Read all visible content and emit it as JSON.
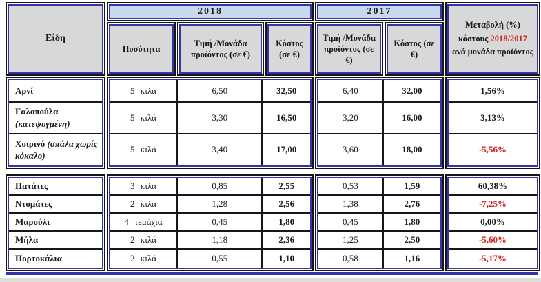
{
  "table": {
    "header": {
      "items_label": "Είδη",
      "year_2018": "2018",
      "year_2017": "2017",
      "quantity": "Ποσότητα",
      "unit_price_2018": "Τιμή /Μονάδα προϊόντος (σε €)",
      "cost_2018": "Κόστος (σε €)",
      "unit_price_2017": "Τιμή /Μονάδα προϊόντος (σε €)",
      "cost_2017": "Κόστος (σε €)",
      "change_line1": "Μεταβολή (%)",
      "change_prefix": "κόστους ",
      "change_years": "2018/2017",
      "change_suffix": "ανά μονάδα προϊόντος"
    },
    "groups": [
      {
        "rows": [
          {
            "name": "Αρνί",
            "note": "",
            "qty": "5 κιλά",
            "unit_price_2018": "6,50",
            "cost_2018": "32,50",
            "unit_price_2017": "6,40",
            "cost_2017": "32,00",
            "change": "1,56%",
            "negative": false
          },
          {
            "name": "Γαλοπούλα",
            "note": "(κατεψυγμένη)",
            "qty": "5 κιλά",
            "unit_price_2018": "3,30",
            "cost_2018": "16,50",
            "unit_price_2017": "3,20",
            "cost_2017": "16,00",
            "change": "3,13%",
            "negative": false
          },
          {
            "name": "Χοιρινό",
            "note": "(σπάλα χωρίς κόκαλο)",
            "qty": "5 κιλά",
            "unit_price_2018": "3,40",
            "cost_2018": "17,00",
            "unit_price_2017": "3,60",
            "cost_2017": "18,00",
            "change": "-5,56%",
            "negative": true
          }
        ]
      },
      {
        "rows": [
          {
            "name": "Πατάτες",
            "note": "",
            "qty": "3 κιλά",
            "unit_price_2018": "0,85",
            "cost_2018": "2,55",
            "unit_price_2017": "0,53",
            "cost_2017": "1,59",
            "change": "60,38%",
            "negative": false
          },
          {
            "name": "Ντομάτες",
            "note": "",
            "qty": "2 κιλά",
            "unit_price_2018": "1,28",
            "cost_2018": "2,56",
            "unit_price_2017": "1,38",
            "cost_2017": "2,76",
            "change": "-7,25%",
            "negative": true
          },
          {
            "name": "Μαρούλι",
            "note": "",
            "qty": "4 τεμάχια",
            "unit_price_2018": "0,45",
            "cost_2018": "1,80",
            "unit_price_2017": "0,45",
            "cost_2017": "1,80",
            "change": "0,00%",
            "negative": false
          },
          {
            "name": "Μήλα",
            "note": "",
            "qty": "2 κιλά",
            "unit_price_2018": "1,18",
            "cost_2018": "2,36",
            "unit_price_2017": "1,25",
            "cost_2017": "2,50",
            "change": "-5,60%",
            "negative": true
          },
          {
            "name": "Πορτοκάλια",
            "note": "",
            "qty": "2 κιλά",
            "unit_price_2018": "0,55",
            "cost_2018": "1,10",
            "unit_price_2017": "0,58",
            "cost_2017": "1,16",
            "change": "-5,17%",
            "negative": true
          }
        ]
      }
    ],
    "colors": {
      "accent_border": "#3333aa",
      "band_fill": "#c8d8ee",
      "header_fill": "#d8d8d8",
      "grid_line": "#161616",
      "negative_text": "#cf2420"
    }
  }
}
